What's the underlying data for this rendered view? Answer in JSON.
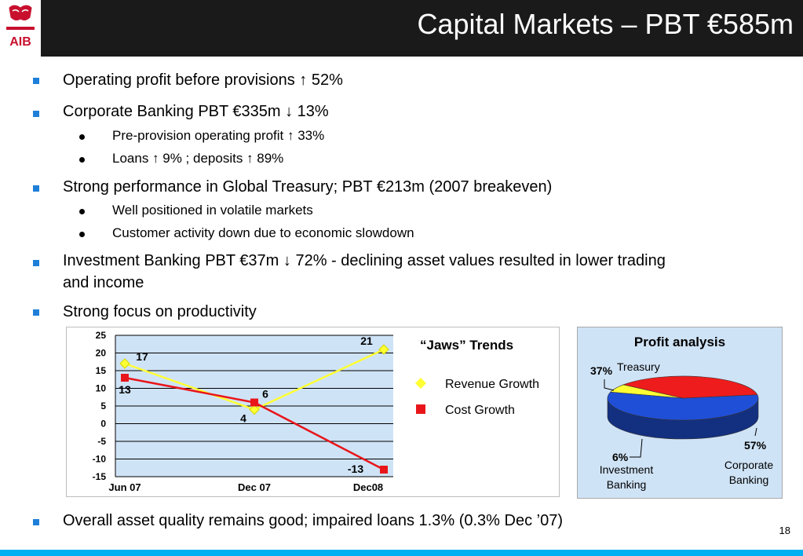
{
  "header": {
    "title": "Capital Markets – PBT €585m",
    "logo_text": "AIB"
  },
  "bullets": {
    "b1": "Operating profit before provisions ↑ 52%",
    "b2": "Corporate Banking PBT €335m ↓ 13%",
    "b2_sub1": "Pre-provision operating profit ↑ 33%",
    "b2_sub2": "Loans ↑ 9% ;  deposits ↑ 89%",
    "b3": "Strong performance in Global Treasury; PBT €213m (2007 breakeven)",
    "b3_sub1": "Well positioned in volatile markets",
    "b3_sub2": "Customer activity down due to economic slowdown",
    "b4_line1": "Investment Banking PBT €37m ↓ 72% - declining asset values resulted in lower trading",
    "b4_line2": "and income",
    "b5": "Strong focus on productivity",
    "footer": "Overall asset quality remains good; impaired loans 1.3% (0.3% Dec ’07)"
  },
  "page_number": "18",
  "colors": {
    "header_bg": "#1a1a1a",
    "bullet_square": "#1e7fd8",
    "bottom_bar": "#00b0f0",
    "logo_red": "#c8102e"
  },
  "chart_data": [
    {
      "type": "line",
      "title": "“Jaws”  Trends",
      "categories": [
        "Jun 07",
        "Dec 07",
        "Dec08"
      ],
      "yticks": [
        "25",
        "20",
        "15",
        "10",
        "5",
        "0",
        "-5",
        "-10",
        "-15"
      ],
      "ylim": [
        -15,
        25
      ],
      "grid": true,
      "legend_position": "right",
      "series": [
        {
          "name": "Revenue Growth",
          "values": [
            17,
            4,
            21
          ],
          "labels": [
            "17",
            "4",
            "21"
          ],
          "color": "#ffff33",
          "marker": "diamond"
        },
        {
          "name": "Cost Growth",
          "values": [
            13,
            6,
            -13
          ],
          "labels": [
            "13",
            "6",
            "-13"
          ],
          "color": "#e8161b",
          "marker": "square"
        }
      ]
    },
    {
      "type": "pie",
      "title": "Profit analysis",
      "slices": [
        {
          "name": "Corporate Banking",
          "value": 57,
          "label": "57%",
          "color": "#1f4fd6",
          "name_lines": [
            "Corporate",
            "Banking"
          ]
        },
        {
          "name": "Treasury",
          "value": 37,
          "label": "37%",
          "color": "#ee1c1c",
          "name_lines": [
            "Treasury"
          ]
        },
        {
          "name": "Investment Banking",
          "value": 6,
          "label": "6%",
          "color": "#ffff33",
          "name_lines": [
            "Investment",
            "Banking"
          ]
        }
      ]
    }
  ]
}
